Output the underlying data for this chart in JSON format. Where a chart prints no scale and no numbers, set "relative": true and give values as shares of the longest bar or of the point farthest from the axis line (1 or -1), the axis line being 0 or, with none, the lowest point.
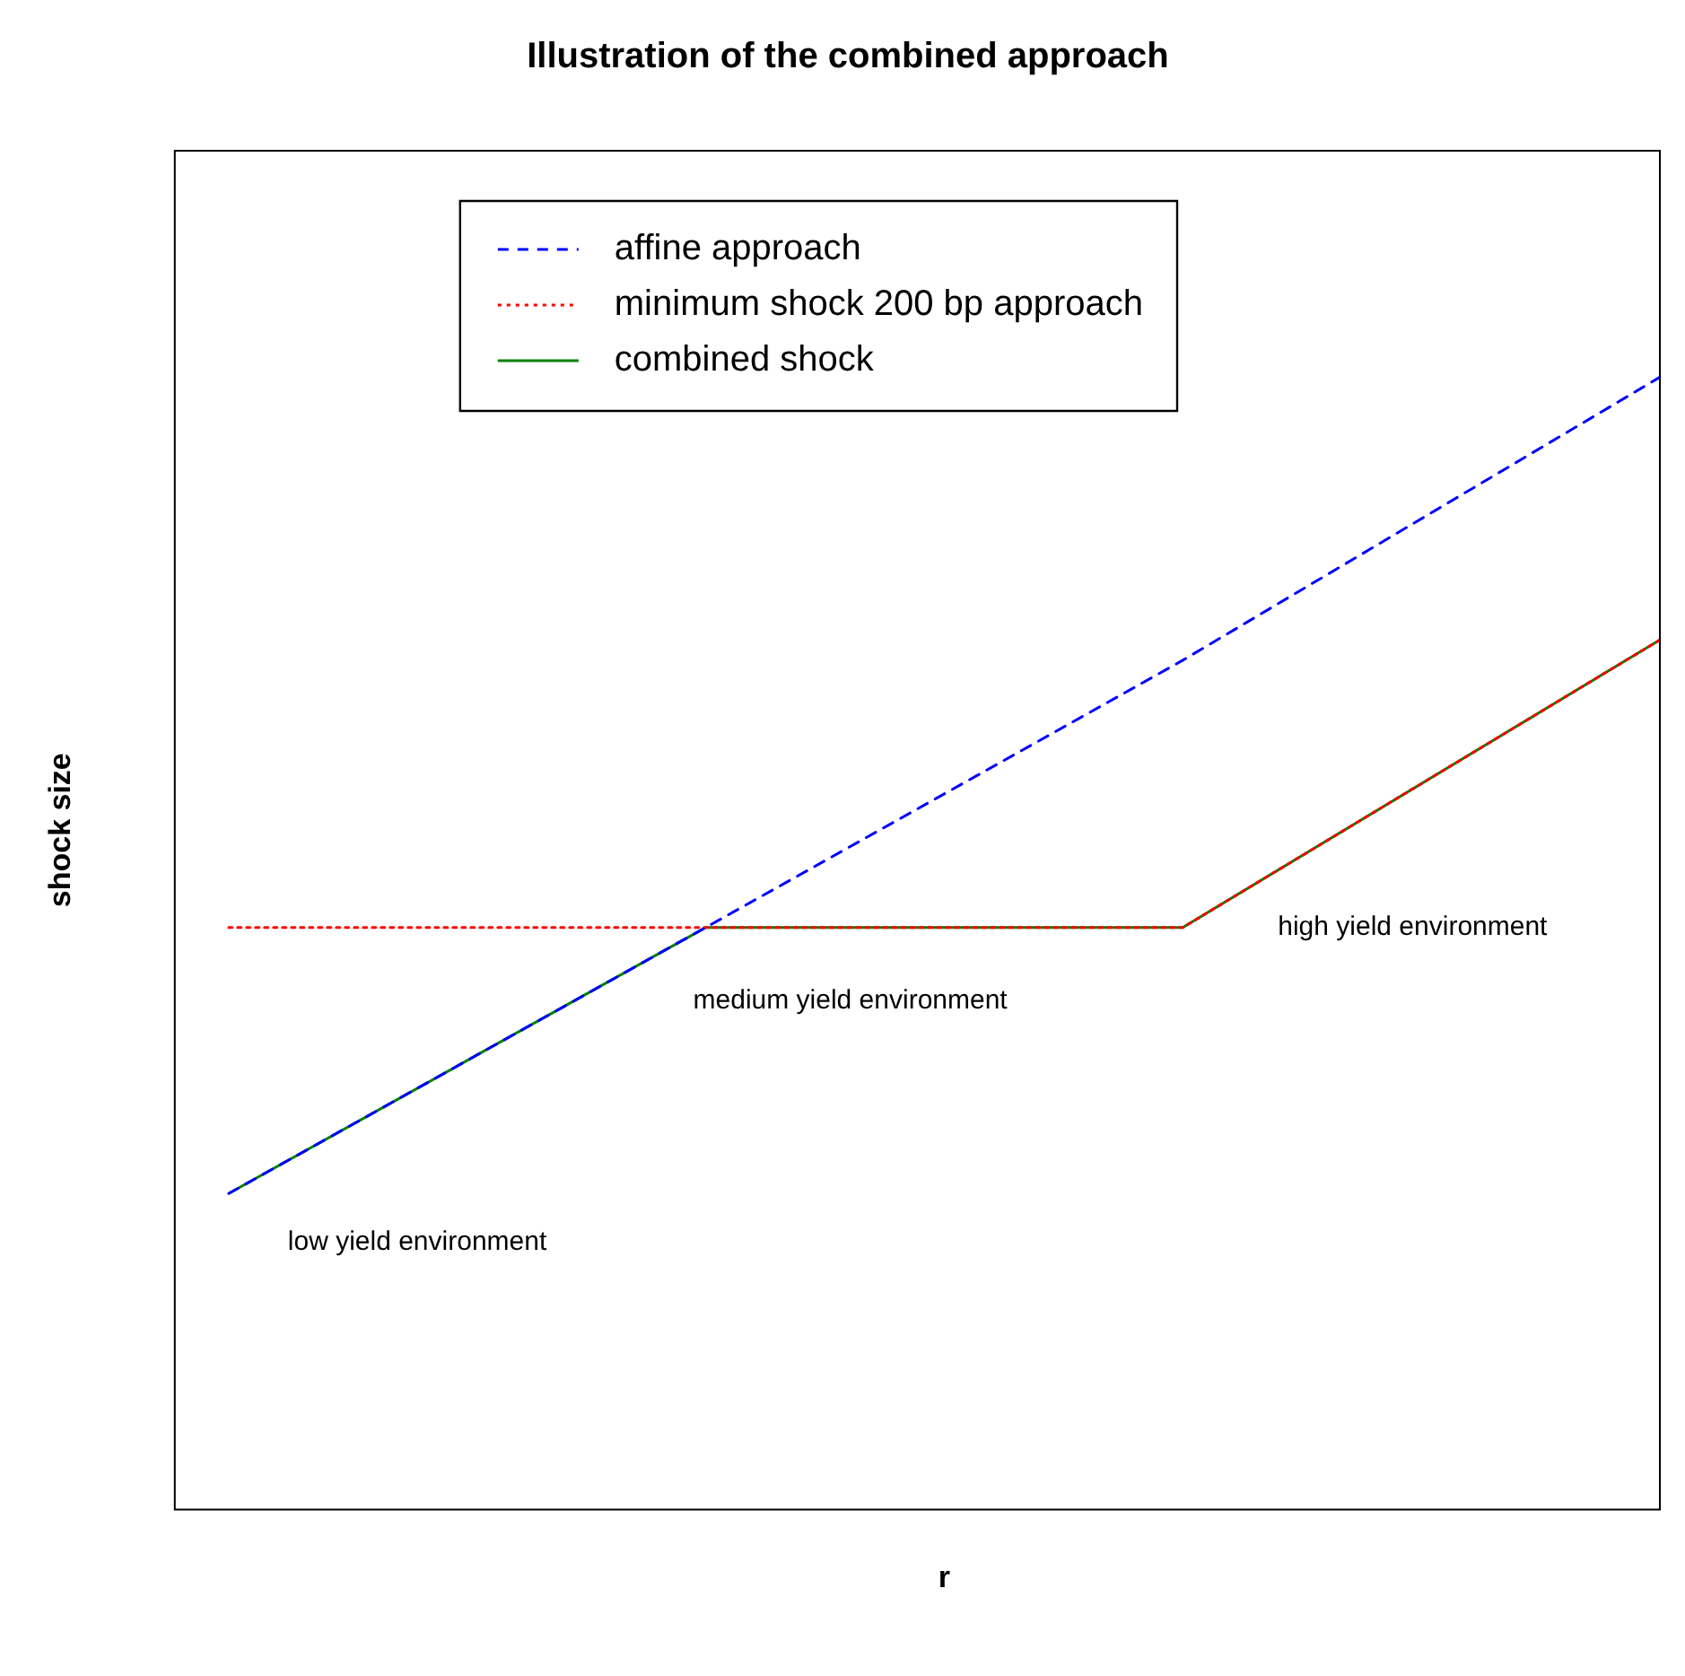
{
  "chart_data": {
    "type": "line",
    "title": "Illustration of the combined approach",
    "xlabel": "r",
    "ylabel": "shock size",
    "relative": true,
    "categories": [
      null,
      null,
      null,
      null
    ],
    "series": [
      {
        "name": "affine approach",
        "color": "#0000ff",
        "line_style": "dashed",
        "values": [
          0.279,
          0.514,
          0.75,
          1
        ]
      },
      {
        "name": "minimum shock 200 bp approach",
        "color": "#ff0000",
        "line_style": "dotted",
        "values": [
          0.514,
          0.514,
          0.514,
          0.768
        ]
      },
      {
        "name": "combined shock",
        "color": "#008000",
        "line_style": "solid",
        "values": [
          0.279,
          0.514,
          0.514,
          0.768
        ]
      }
    ],
    "annotations": [
      "low yield environment",
      "medium yield environment",
      "high yield environment"
    ],
    "legend": "top left",
    "marker": "none",
    "grid": false
  }
}
